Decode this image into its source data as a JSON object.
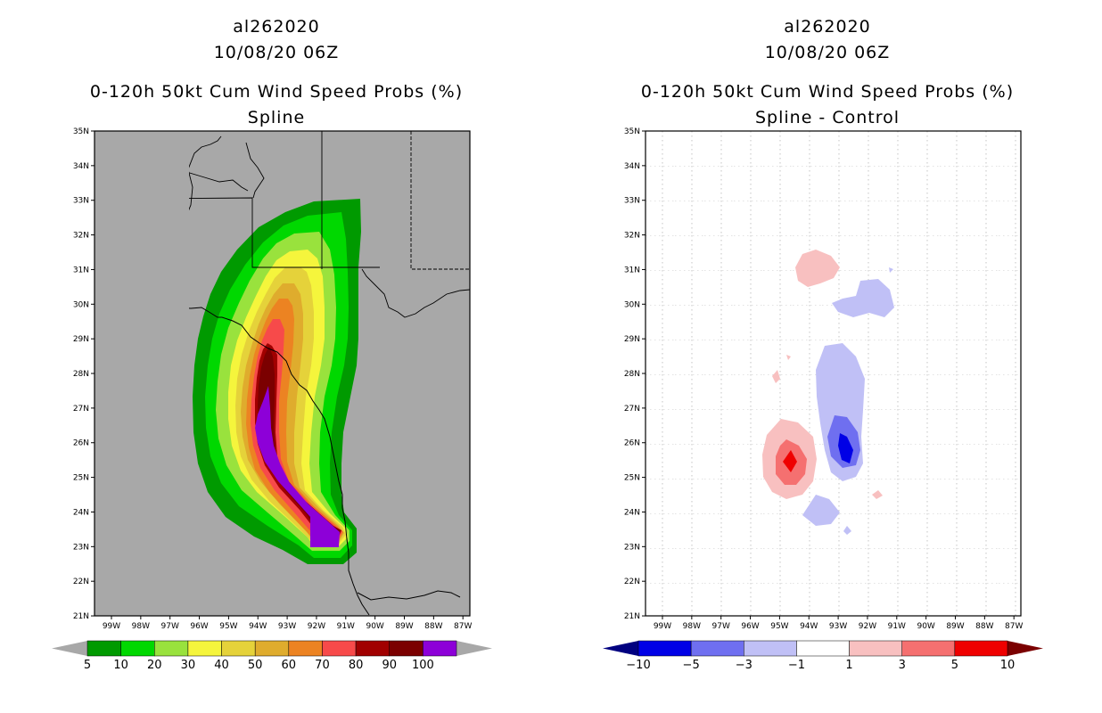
{
  "chart_data": [
    {
      "type": "heatmap",
      "storm_id": "al262020",
      "date": "10/08/20 06Z",
      "title": "0-120h 50kt Cum Wind Speed Probs (%)",
      "subtitle": "Spline",
      "xlabel": "",
      "ylabel": "",
      "lon_ticks": [
        "99W",
        "98W",
        "97W",
        "96W",
        "95W",
        "94W",
        "93W",
        "92W",
        "91W",
        "90W",
        "89W",
        "88W",
        "87W"
      ],
      "lat_ticks": [
        "35N",
        "34N",
        "33N",
        "32N",
        "31N",
        "30N",
        "29N",
        "28N",
        "27N",
        "26N",
        "25N",
        "24N",
        "23N",
        "22N",
        "21N"
      ],
      "lon_range": [
        -99.6,
        -86.5
      ],
      "lat_range": [
        21,
        35
      ],
      "colorbar": {
        "labels": [
          "5",
          "10",
          "20",
          "30",
          "40",
          "50",
          "60",
          "70",
          "80",
          "90",
          "100"
        ],
        "colors": [
          "#009a00",
          "#00d800",
          "#99e23d",
          "#f5f53c",
          "#e5d23a",
          "#dfac2d",
          "#ec8322",
          "#f74a4a",
          "#a10000",
          "#7b0000",
          "#8d00d8"
        ],
        "under_color": "#a8a8a8",
        "over_color": "#a8a8a8"
      },
      "background": "#a8a8a8"
    },
    {
      "type": "heatmap",
      "storm_id": "al262020",
      "date": "10/08/20 06Z",
      "title": "0-120h 50kt Cum Wind Speed Probs (%)",
      "subtitle": "Spline - Control",
      "xlabel": "",
      "ylabel": "",
      "lon_ticks": [
        "99W",
        "98W",
        "97W",
        "96W",
        "95W",
        "94W",
        "93W",
        "92W",
        "91W",
        "90W",
        "89W",
        "88W",
        "87W"
      ],
      "lat_ticks": [
        "35N",
        "34N",
        "33N",
        "32N",
        "31N",
        "30N",
        "29N",
        "28N",
        "27N",
        "26N",
        "25N",
        "24N",
        "23N",
        "22N",
        "21N"
      ],
      "lon_range": [
        -99.6,
        -86.5
      ],
      "lat_range": [
        21,
        35
      ],
      "colorbar": {
        "labels": [
          "−10",
          "−5",
          "−3",
          "−1",
          "1",
          "3",
          "5",
          "10"
        ],
        "colors": [
          "#0000e6",
          "#6f6ff0",
          "#c0c0f6",
          "#ffffff",
          "#f8c0c0",
          "#f57070",
          "#ef0000"
        ],
        "under_color": "#000080",
        "over_color": "#7b0000"
      },
      "background": "#ffffff"
    }
  ]
}
